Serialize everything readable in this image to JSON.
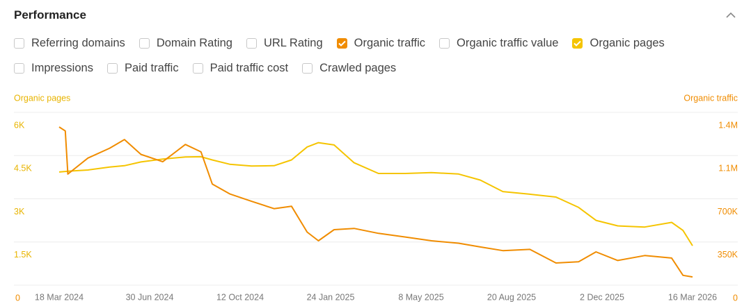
{
  "header": {
    "title": "Performance"
  },
  "controls": {
    "checkboxes": [
      [
        {
          "label": "Referring domains",
          "checked": false
        },
        {
          "label": "Domain Rating",
          "checked": false
        },
        {
          "label": "URL Rating",
          "checked": false
        },
        {
          "label": "Organic traffic",
          "checked": true,
          "color": "#f08c00"
        },
        {
          "label": "Organic traffic value",
          "checked": false
        },
        {
          "label": "Organic pages",
          "checked": true,
          "color": "#f5c400"
        }
      ],
      [
        {
          "label": "Impressions",
          "checked": false
        },
        {
          "label": "Paid traffic",
          "checked": false
        },
        {
          "label": "Paid traffic cost",
          "checked": false
        },
        {
          "label": "Crawled pages",
          "checked": false
        }
      ]
    ]
  },
  "chart_data": {
    "type": "line",
    "x": [
      "2024-03-18",
      "2024-03-25",
      "2024-03-28",
      "2024-04-20",
      "2024-05-15",
      "2024-06-01",
      "2024-06-20",
      "2024-07-15",
      "2024-08-10",
      "2024-08-28",
      "2024-09-10",
      "2024-09-30",
      "2024-10-25",
      "2024-11-20",
      "2024-12-10",
      "2024-12-28",
      "2025-01-10",
      "2025-01-28",
      "2025-02-20",
      "2025-03-20",
      "2025-04-20",
      "2025-05-20",
      "2025-06-20",
      "2025-07-15",
      "2025-08-10",
      "2025-09-10",
      "2025-10-10",
      "2025-11-05",
      "2025-11-25",
      "2025-12-20",
      "2026-01-20",
      "2026-02-20",
      "2026-03-05",
      "2026-03-16"
    ],
    "series": [
      {
        "name": "Organic pages",
        "color": "#f5c400",
        "axis": "y",
        "values": [
          3930,
          3950,
          3960,
          4000,
          4100,
          4150,
          4280,
          4380,
          4450,
          4460,
          4350,
          4200,
          4140,
          4150,
          4350,
          4800,
          4950,
          4870,
          4250,
          3880,
          3880,
          3910,
          3860,
          3650,
          3250,
          3160,
          3060,
          2700,
          2250,
          2060,
          2020,
          2180,
          1900,
          1370
        ]
      },
      {
        "name": "Organic traffic",
        "color": "#f08c00",
        "axis": "y2",
        "values": [
          1282000,
          1250000,
          900000,
          1030000,
          1110000,
          1180000,
          1060000,
          1000000,
          1140000,
          1080000,
          820000,
          740000,
          680000,
          620000,
          640000,
          430000,
          360000,
          450000,
          460000,
          420000,
          390000,
          360000,
          340000,
          310000,
          280000,
          290000,
          180000,
          190000,
          270000,
          200000,
          240000,
          220000,
          80000,
          67000
        ]
      }
    ],
    "xlim": [
      "2024-01-26",
      "2026-05-07"
    ],
    "xticks": [
      {
        "value": "2024-03-18",
        "label": "18 Mar 2024"
      },
      {
        "value": "2024-06-30",
        "label": "30 Jun 2024"
      },
      {
        "value": "2024-10-12",
        "label": "12 Oct 2024"
      },
      {
        "value": "2025-01-24",
        "label": "24 Jan 2025"
      },
      {
        "value": "2025-05-08",
        "label": "8 May 2025"
      },
      {
        "value": "2025-08-20",
        "label": "20 Aug 2025"
      },
      {
        "value": "2025-12-02",
        "label": "2 Dec 2025"
      },
      {
        "value": "2026-03-16",
        "label": "16 Mar 2026"
      }
    ],
    "ylim": [
      0,
      6000
    ],
    "yticks": [
      0,
      {
        "value": 1500,
        "label": "1.5K"
      },
      {
        "value": 3000,
        "label": "3K"
      },
      {
        "value": 4500,
        "label": "4.5K"
      },
      {
        "value": 6000,
        "label": "6K"
      }
    ],
    "y2lim": [
      0,
      1400000
    ],
    "y2ticks": [
      0,
      {
        "value": 350000,
        "label": "350K"
      },
      {
        "value": 700000,
        "label": "700K"
      },
      {
        "value": 1050000,
        "label": "1.1M"
      },
      {
        "value": 1400000,
        "label": "1.4M"
      }
    ],
    "grid": true
  }
}
